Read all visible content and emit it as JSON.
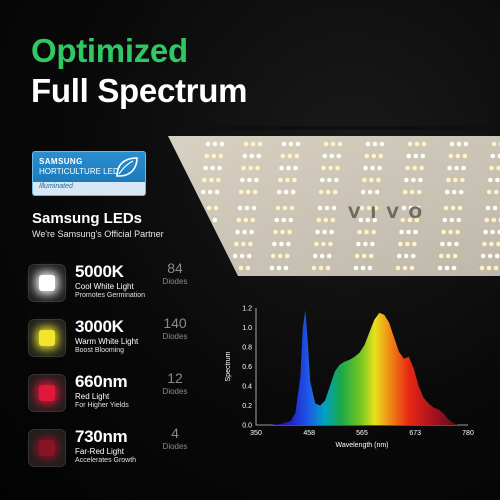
{
  "headline": {
    "line1": "Optimized",
    "line2": "Full Spectrum"
  },
  "badge": {
    "samsung": "SAMSUNG",
    "horticulture": "HORTICULTURE LED",
    "illuminated": "Illuminated",
    "icon": "leaf-icon"
  },
  "brand": {
    "title": "Samsung LEDs",
    "subtitle": "We're Samsung's Official Partner"
  },
  "panel": {
    "logo": "VIVO"
  },
  "leds": [
    {
      "main": "5000K",
      "name": "Cool White Light",
      "desc": "Promotes Germination",
      "count": "84",
      "count_label": "Diodes",
      "color": "#ffffff"
    },
    {
      "main": "3000K",
      "name": "Warm White Light",
      "desc": "Boost Blooming",
      "count": "140",
      "count_label": "Diodes",
      "color": "#f2e62c"
    },
    {
      "main": "660nm",
      "name": "Red Light",
      "desc": "For Higher Yields",
      "count": "12",
      "count_label": "Diodes",
      "color": "#e0183a"
    },
    {
      "main": "730nm",
      "name": "Far-Red Light",
      "desc": "Accelerates Growth",
      "count": "4",
      "count_label": "Diodes",
      "color": "#8a1424"
    }
  ],
  "chart_data": {
    "type": "area",
    "ylabel": "Spectrum",
    "xlabel": "Wavelength (nm)",
    "xlim": [
      350,
      780
    ],
    "ylim": [
      0,
      1.2
    ],
    "x_ticks": [
      "350",
      "458",
      "565",
      "673",
      "780"
    ],
    "y_ticks": [
      "0.0",
      "0.2",
      "0.4",
      "0.6",
      "0.8",
      "1.0",
      "1.2"
    ],
    "grid": false,
    "x": [
      350,
      380,
      400,
      420,
      430,
      440,
      445,
      450,
      455,
      460,
      470,
      480,
      490,
      500,
      510,
      520,
      530,
      540,
      550,
      560,
      570,
      580,
      590,
      600,
      610,
      620,
      630,
      640,
      650,
      660,
      670,
      680,
      690,
      700,
      710,
      720,
      730,
      740,
      750,
      760,
      780
    ],
    "y": [
      0.0,
      0.0,
      0.01,
      0.04,
      0.12,
      0.5,
      1.0,
      1.18,
      0.85,
      0.45,
      0.22,
      0.2,
      0.25,
      0.4,
      0.55,
      0.62,
      0.65,
      0.67,
      0.7,
      0.74,
      0.82,
      0.95,
      1.08,
      1.15,
      1.13,
      1.05,
      0.9,
      0.75,
      0.68,
      0.7,
      0.58,
      0.4,
      0.28,
      0.22,
      0.18,
      0.16,
      0.12,
      0.06,
      0.02,
      0.0,
      0.0
    ]
  }
}
